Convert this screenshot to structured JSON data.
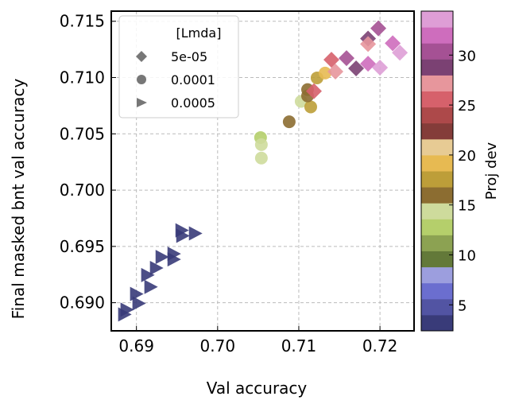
{
  "chart_data": {
    "type": "scatter",
    "xlabel": "Val accuracy",
    "ylabel": "Final masked bnt val accuracy",
    "xlim": [
      0.6869,
      0.7242
    ],
    "ylim": [
      0.6875,
      0.7159
    ],
    "xticks": [
      "0.69",
      "0.70",
      "0.71",
      "0.72"
    ],
    "xtick_values": [
      0.69,
      0.7,
      0.71,
      0.72
    ],
    "yticks": [
      "0.690",
      "0.695",
      "0.700",
      "0.705",
      "0.710",
      "0.715"
    ],
    "ytick_values": [
      0.69,
      0.695,
      0.7,
      0.705,
      0.71,
      0.715
    ],
    "grid": true,
    "legend": {
      "title": "[Lmda]",
      "placement": "top-left",
      "entries": [
        {
          "label": "5e-05",
          "marker": "diamond"
        },
        {
          "label": "0.0001",
          "marker": "circle"
        },
        {
          "label": "0.0005",
          "marker": "triangle-right"
        }
      ]
    },
    "colorbar": {
      "label": "Proj dev",
      "range": [
        2.4,
        34.4
      ],
      "ticks": [
        "5",
        "10",
        "15",
        "20",
        "25",
        "30"
      ],
      "tick_values": [
        5,
        10,
        15,
        20,
        25,
        30
      ],
      "colors": [
        "#393b79",
        "#5254a3",
        "#6b6ecf",
        "#9c9ede",
        "#637939",
        "#8ca252",
        "#b5cf6b",
        "#cedb9c",
        "#8c6d31",
        "#bd9e39",
        "#e7ba52",
        "#e7cb94",
        "#843c39",
        "#ad494a",
        "#d6616b",
        "#e7969c",
        "#7b4173",
        "#a55194",
        "#ce6dbd",
        "#de9ed6"
      ]
    },
    "series": [
      {
        "marker": "triangle-right",
        "points": [
          [
            0.68853,
            0.68896,
            3
          ],
          [
            0.68882,
            0.68938,
            3
          ],
          [
            0.69029,
            0.68994,
            3
          ],
          [
            0.69,
            0.69078,
            3
          ],
          [
            0.69176,
            0.6914,
            3
          ],
          [
            0.69137,
            0.69245,
            3
          ],
          [
            0.69245,
            0.69308,
            3
          ],
          [
            0.69314,
            0.69406,
            3
          ],
          [
            0.69461,
            0.69385,
            3
          ],
          [
            0.69461,
            0.69434,
            3
          ],
          [
            0.69559,
            0.69643,
            3
          ],
          [
            0.69569,
            0.69594,
            3
          ],
          [
            0.69725,
            0.69615,
            3
          ]
        ]
      },
      {
        "marker": "circle",
        "points": [
          [
            0.70529,
            0.70467,
            13
          ],
          [
            0.70539,
            0.70404,
            14
          ],
          [
            0.70539,
            0.70285,
            14
          ],
          [
            0.70882,
            0.70607,
            16
          ],
          [
            0.71029,
            0.70788,
            14
          ],
          [
            0.71147,
            0.70739,
            18
          ],
          [
            0.71108,
            0.70893,
            16
          ],
          [
            0.71108,
            0.70837,
            16
          ],
          [
            0.71225,
            0.70997,
            18
          ],
          [
            0.71324,
            0.7104,
            19
          ]
        ]
      },
      {
        "marker": "diamond",
        "points": [
          [
            0.71186,
            0.70879,
            26
          ],
          [
            0.71402,
            0.71158,
            26
          ],
          [
            0.71451,
            0.71053,
            27
          ],
          [
            0.71588,
            0.71172,
            30
          ],
          [
            0.71706,
            0.71081,
            29
          ],
          [
            0.71853,
            0.71123,
            32
          ],
          [
            0.72,
            0.71088,
            34
          ],
          [
            0.71853,
            0.71346,
            29
          ],
          [
            0.71853,
            0.71298,
            27
          ],
          [
            0.7198,
            0.71437,
            30
          ],
          [
            0.72157,
            0.71305,
            32
          ],
          [
            0.72245,
            0.71221,
            34
          ]
        ]
      }
    ]
  }
}
